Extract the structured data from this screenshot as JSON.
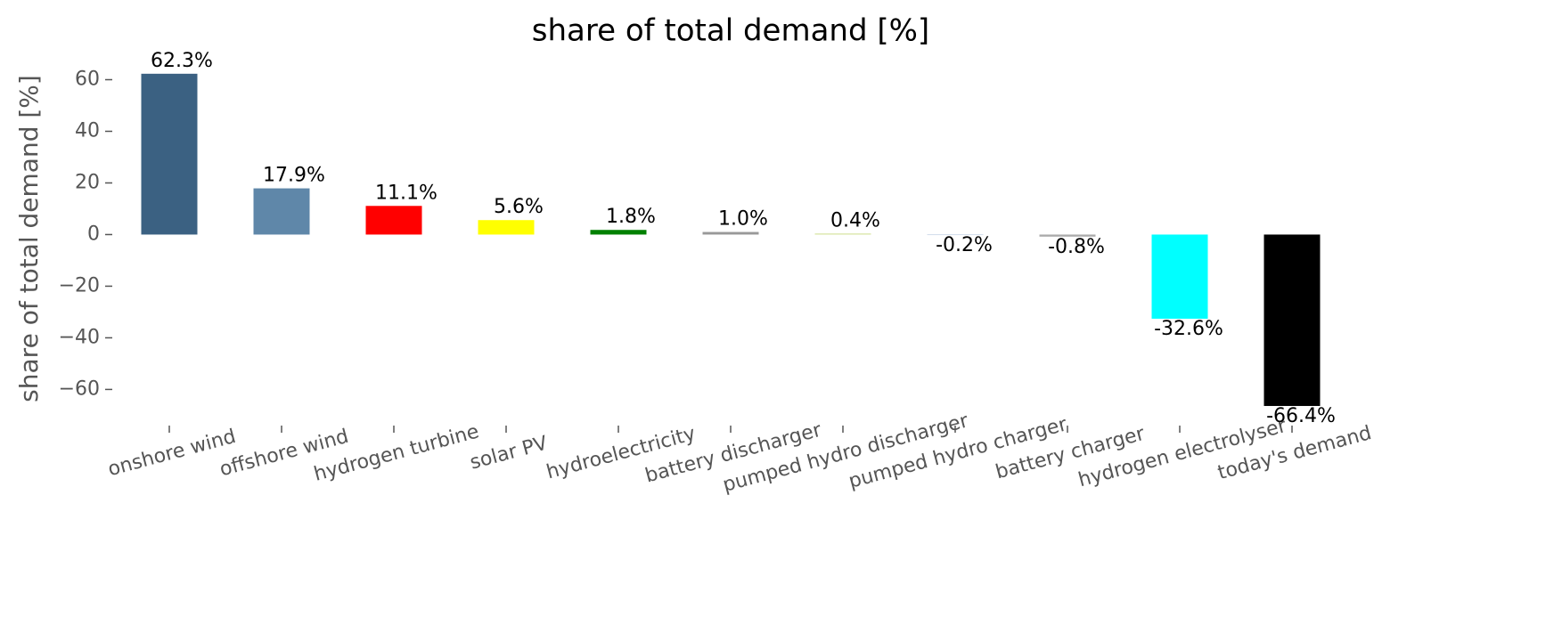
{
  "chart_data": {
    "type": "bar",
    "title": "share of total demand [%]",
    "y_label": "share of total demand [%]",
    "categories": [
      "onshore wind",
      "offshore wind",
      "hydrogen turbine",
      "solar PV",
      "hydroelectricity",
      "battery discharger",
      "pumped hydro discharger",
      "pumped hydro charger",
      "battery charger",
      "hydrogen electrolyser",
      "today's demand"
    ],
    "values": [
      62.3,
      17.9,
      11.1,
      5.6,
      1.8,
      1.0,
      0.4,
      -0.2,
      -0.8,
      -32.6,
      -66.4
    ],
    "value_labels": [
      "62.3%",
      "17.9%",
      "11.1%",
      "5.6%",
      "1.8%",
      "1.0%",
      "0.4%",
      "-0.2%",
      "-0.8%",
      "-32.6%",
      "-66.4%"
    ],
    "colors": [
      "#3b6182",
      "#5f87a9",
      "#ff0000",
      "#ffff00",
      "#008000",
      "#999999",
      "#d4e29a",
      "#b0c4de",
      "#aaaaaa",
      "#00ffff",
      "#000000"
    ],
    "ylim": [
      -74,
      65
    ],
    "yticks": [
      {
        "value": -60,
        "label": "−60"
      },
      {
        "value": -40,
        "label": "−40"
      },
      {
        "value": -20,
        "label": "−20"
      },
      0,
      20,
      40,
      60
    ],
    "grid": false
  }
}
